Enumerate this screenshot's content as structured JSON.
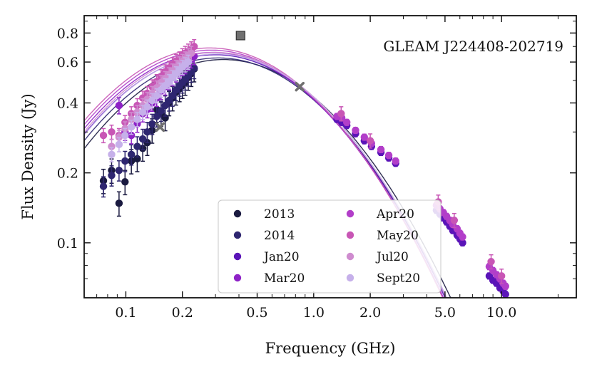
{
  "chart_data": {
    "type": "scatter",
    "title": "",
    "annotation": "GLEAM J224408-202719",
    "xlabel": "Frequency (GHz)",
    "ylabel": "Flux Density (Jy)",
    "xscale": "log",
    "yscale": "log",
    "xlim": [
      0.06,
      25
    ],
    "ylim": [
      0.058,
      0.95
    ],
    "x_ticks": [
      {
        "value": 0.1,
        "label": "0.1"
      },
      {
        "value": 0.2,
        "label": "0.2"
      },
      {
        "value": 0.5,
        "label": "0.5"
      },
      {
        "value": 1.0,
        "label": "1.0"
      },
      {
        "value": 2.0,
        "label": "2.0"
      },
      {
        "value": 5.0,
        "label": "5.0"
      },
      {
        "value": 10.0,
        "label": "10.0"
      }
    ],
    "y_ticks": [
      {
        "value": 0.1,
        "label": "0.1"
      },
      {
        "value": 0.2,
        "label": "0.2"
      },
      {
        "value": 0.4,
        "label": "0.4"
      },
      {
        "value": 0.6,
        "label": "0.6"
      },
      {
        "value": 0.8,
        "label": "0.8"
      }
    ],
    "legend_position": "bottom-center",
    "series": [
      {
        "name": "2013",
        "color": "#1a1a40",
        "fit": {
          "peak_freq": 0.33,
          "peak_flux": 0.615
        },
        "points": [
          [
            0.076,
            0.185
          ],
          [
            0.084,
            0.205
          ],
          [
            0.092,
            0.148
          ],
          [
            0.099,
            0.183
          ],
          [
            0.107,
            0.225
          ],
          [
            0.115,
            0.23
          ],
          [
            0.123,
            0.255
          ],
          [
            0.13,
            0.27
          ],
          [
            0.138,
            0.305
          ],
          [
            0.146,
            0.375
          ],
          [
            0.154,
            0.36
          ],
          [
            0.162,
            0.345
          ],
          [
            0.17,
            0.4
          ],
          [
            0.177,
            0.42
          ],
          [
            0.185,
            0.445
          ],
          [
            0.193,
            0.46
          ],
          [
            0.2,
            0.475
          ],
          [
            0.207,
            0.49
          ],
          [
            0.215,
            0.515
          ],
          [
            0.223,
            0.535
          ],
          [
            0.231,
            0.56
          ]
        ],
        "err": 0.12
      },
      {
        "name": "2014",
        "color": "#2e2670",
        "fit": {
          "peak_freq": 0.31,
          "peak_flux": 0.625
        },
        "points": [
          [
            0.076,
            0.175
          ],
          [
            0.084,
            0.195
          ],
          [
            0.092,
            0.205
          ],
          [
            0.099,
            0.225
          ],
          [
            0.107,
            0.24
          ],
          [
            0.115,
            0.26
          ],
          [
            0.123,
            0.28
          ],
          [
            0.13,
            0.3
          ],
          [
            0.138,
            0.325
          ],
          [
            0.146,
            0.35
          ],
          [
            0.154,
            0.37
          ],
          [
            0.162,
            0.39
          ],
          [
            0.17,
            0.41
          ],
          [
            0.177,
            0.43
          ],
          [
            0.185,
            0.455
          ],
          [
            0.193,
            0.475
          ],
          [
            0.2,
            0.49
          ],
          [
            0.207,
            0.505
          ],
          [
            0.215,
            0.525
          ],
          [
            0.223,
            0.545
          ],
          [
            0.231,
            0.565
          ]
        ],
        "err": 0.1
      },
      {
        "name": "Jan20",
        "color": "#5a14b8",
        "fit": {
          "peak_freq": 0.3,
          "peak_flux": 0.645
        },
        "points": [
          [
            1.33,
            0.34
          ],
          [
            1.41,
            0.33
          ],
          [
            1.5,
            0.32
          ],
          [
            1.67,
            0.295
          ],
          [
            1.86,
            0.275
          ],
          [
            2.03,
            0.26
          ],
          [
            2.28,
            0.245
          ],
          [
            2.51,
            0.232
          ],
          [
            2.73,
            0.22
          ],
          [
            4.5,
            0.138
          ],
          [
            4.7,
            0.133
          ],
          [
            4.9,
            0.128
          ],
          [
            5.1,
            0.123
          ],
          [
            5.3,
            0.118
          ],
          [
            5.5,
            0.113
          ],
          [
            5.8,
            0.108
          ],
          [
            6.0,
            0.104
          ],
          [
            6.2,
            0.1
          ],
          [
            8.6,
            0.072
          ],
          [
            9.0,
            0.069
          ],
          [
            9.4,
            0.067
          ],
          [
            9.8,
            0.064
          ],
          [
            10.2,
            0.062
          ],
          [
            10.5,
            0.06
          ]
        ],
        "err": 0.03
      },
      {
        "name": "Mar20",
        "color": "#8e22c7",
        "fit": {
          "peak_freq": 0.29,
          "peak_flux": 0.66
        },
        "points": [
          [
            0.092,
            0.39
          ],
          [
            0.099,
            0.3
          ],
          [
            0.107,
            0.29
          ],
          [
            0.115,
            0.325
          ],
          [
            0.123,
            0.36
          ],
          [
            0.13,
            0.375
          ],
          [
            0.138,
            0.4
          ],
          [
            0.146,
            0.42
          ],
          [
            0.154,
            0.45
          ],
          [
            0.162,
            0.47
          ],
          [
            0.17,
            0.495
          ],
          [
            0.177,
            0.515
          ],
          [
            0.185,
            0.535
          ],
          [
            0.193,
            0.555
          ],
          [
            0.2,
            0.57
          ],
          [
            0.207,
            0.58
          ],
          [
            0.215,
            0.6
          ],
          [
            0.223,
            0.615
          ],
          [
            0.231,
            0.635
          ]
        ],
        "err": 0.08
      },
      {
        "name": "Apr20",
        "color": "#b23ec9",
        "fit": {
          "peak_freq": 0.285,
          "peak_flux": 0.675
        },
        "points": [
          [
            1.33,
            0.35
          ],
          [
            1.41,
            0.345
          ],
          [
            1.5,
            0.33
          ],
          [
            1.67,
            0.305
          ],
          [
            1.86,
            0.285
          ],
          [
            2.03,
            0.268
          ],
          [
            2.28,
            0.252
          ],
          [
            2.51,
            0.238
          ],
          [
            2.73,
            0.225
          ],
          [
            4.5,
            0.145
          ],
          [
            4.7,
            0.14
          ],
          [
            4.9,
            0.135
          ],
          [
            5.1,
            0.13
          ],
          [
            5.3,
            0.125
          ],
          [
            5.5,
            0.12
          ],
          [
            5.8,
            0.115
          ],
          [
            6.0,
            0.11
          ],
          [
            6.2,
            0.106
          ],
          [
            8.6,
            0.079
          ],
          [
            9.0,
            0.076
          ],
          [
            9.4,
            0.073
          ],
          [
            9.8,
            0.07
          ],
          [
            10.2,
            0.067
          ],
          [
            10.5,
            0.065
          ]
        ],
        "err": 0.03
      },
      {
        "name": "May20",
        "color": "#c856b5",
        "fit": {
          "peak_freq": 0.28,
          "peak_flux": 0.69
        },
        "points": [
          [
            0.076,
            0.29
          ],
          [
            0.084,
            0.3
          ],
          [
            0.092,
            0.29
          ],
          [
            0.099,
            0.33
          ],
          [
            0.107,
            0.36
          ],
          [
            0.115,
            0.39
          ],
          [
            0.123,
            0.42
          ],
          [
            0.13,
            0.44
          ],
          [
            0.138,
            0.47
          ],
          [
            0.146,
            0.495
          ],
          [
            0.154,
            0.52
          ],
          [
            0.162,
            0.545
          ],
          [
            0.17,
            0.565
          ],
          [
            0.177,
            0.585
          ],
          [
            0.185,
            0.605
          ],
          [
            0.193,
            0.62
          ],
          [
            0.2,
            0.64
          ],
          [
            0.207,
            0.655
          ],
          [
            0.215,
            0.67
          ],
          [
            0.223,
            0.685
          ],
          [
            0.231,
            0.7
          ],
          [
            1.4,
            0.36
          ],
          [
            2.0,
            0.275
          ],
          [
            4.6,
            0.15
          ],
          [
            5.6,
            0.125
          ],
          [
            8.8,
            0.083
          ],
          [
            10.0,
            0.072
          ]
        ],
        "err": 0.07
      },
      {
        "name": "Jul20",
        "color": "#cf8ccf",
        "fit": {
          "peak_freq": 0.3,
          "peak_flux": 0.66
        },
        "points": [
          [
            0.084,
            0.26
          ],
          [
            0.092,
            0.285
          ],
          [
            0.099,
            0.31
          ],
          [
            0.107,
            0.34
          ],
          [
            0.115,
            0.365
          ],
          [
            0.123,
            0.39
          ],
          [
            0.13,
            0.415
          ],
          [
            0.138,
            0.44
          ],
          [
            0.146,
            0.465
          ],
          [
            0.154,
            0.49
          ],
          [
            0.162,
            0.51
          ],
          [
            0.17,
            0.53
          ],
          [
            0.177,
            0.55
          ],
          [
            0.185,
            0.57
          ],
          [
            0.193,
            0.59
          ],
          [
            0.2,
            0.605
          ],
          [
            0.207,
            0.62
          ],
          [
            0.215,
            0.64
          ],
          [
            0.223,
            0.655
          ]
        ],
        "err": 0.07
      },
      {
        "name": "Sept20",
        "color": "#c6b0ea",
        "fit": {
          "peak_freq": 0.305,
          "peak_flux": 0.65
        },
        "points": [
          [
            0.084,
            0.24
          ],
          [
            0.092,
            0.265
          ],
          [
            0.099,
            0.29
          ],
          [
            0.107,
            0.315
          ],
          [
            0.115,
            0.34
          ],
          [
            0.123,
            0.365
          ],
          [
            0.13,
            0.385
          ],
          [
            0.138,
            0.41
          ],
          [
            0.146,
            0.43
          ],
          [
            0.154,
            0.455
          ],
          [
            0.162,
            0.475
          ],
          [
            0.17,
            0.495
          ],
          [
            0.177,
            0.515
          ],
          [
            0.185,
            0.535
          ],
          [
            0.193,
            0.555
          ],
          [
            0.2,
            0.57
          ],
          [
            0.207,
            0.585
          ],
          [
            0.215,
            0.6
          ]
        ],
        "err": 0.07
      }
    ],
    "extra_points": [
      {
        "marker": "square",
        "color": "#707070",
        "x": 0.408,
        "y": 0.78
      },
      {
        "marker": "x",
        "color": "#707070",
        "x": 0.152,
        "y": 0.315
      },
      {
        "marker": "x",
        "color": "#707070",
        "x": 0.843,
        "y": 0.47
      }
    ]
  }
}
